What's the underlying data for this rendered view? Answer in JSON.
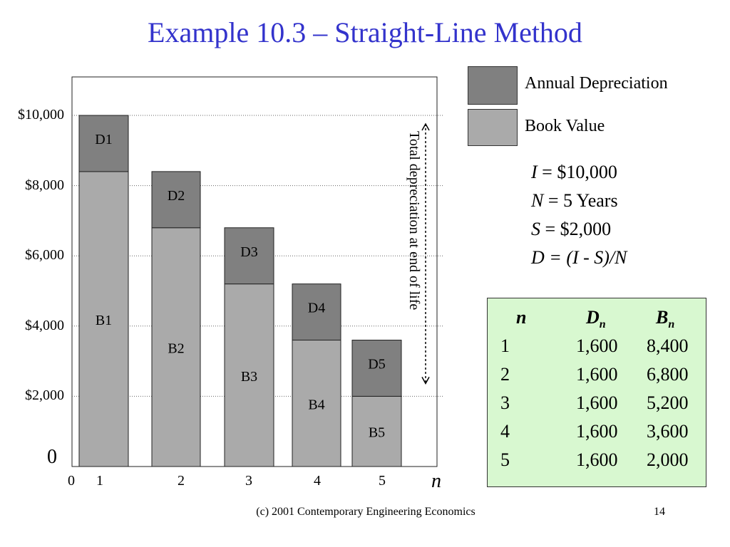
{
  "title": "Example 10.3 – Straight-Line Method",
  "chart_data": {
    "type": "bar",
    "stacked": true,
    "categories": [
      "1",
      "2",
      "3",
      "4",
      "5"
    ],
    "series": [
      {
        "name": "Book Value",
        "values": [
          8400,
          6800,
          5200,
          3600,
          2000
        ],
        "color": "#aaaaaa"
      },
      {
        "name": "Annual Depreciation",
        "values": [
          1600,
          1600,
          1600,
          1600,
          1600
        ],
        "color": "#808080"
      }
    ],
    "bar_labels": {
      "book": [
        "B1",
        "B2",
        "B3",
        "B4",
        "B5"
      ],
      "depreciation": [
        "D1",
        "D2",
        "D3",
        "D4",
        "D5"
      ]
    },
    "y_tick_labels": [
      "$2,000",
      "$4,000",
      "$6,000",
      "$8,000",
      "$10,000"
    ],
    "y_tick_values": [
      2000,
      4000,
      6000,
      8000,
      10000
    ],
    "x_tick_labels": [
      "0",
      "1",
      "2",
      "3",
      "4",
      "5"
    ],
    "zero_label": "0",
    "xlabel": "n",
    "ylim": [
      0,
      11000
    ],
    "grid": "dotted horizontal",
    "annotation": "Total depreciation at end of life",
    "legend": [
      {
        "label": "Annual Depreciation",
        "color": "#808080"
      },
      {
        "label": "Book Value",
        "color": "#aaaaaa"
      }
    ]
  },
  "given": {
    "i_var": "I",
    "i_val": " = $10,000",
    "n_var": "N",
    "n_val": " = 5 Years",
    "s_var": "S",
    "s_val": " = $2,000",
    "d_formula": "D = (I - S)/N"
  },
  "table": {
    "header_n": "n",
    "header_d": "D",
    "header_d_sub": "n",
    "header_b": "B",
    "header_b_sub": "n",
    "rows": [
      {
        "n": "1",
        "d": "1,600",
        "b": "8,400"
      },
      {
        "n": "2",
        "d": "1,600",
        "b": "6,800"
      },
      {
        "n": "3",
        "d": "1,600",
        "b": "5,200"
      },
      {
        "n": "4",
        "d": "1,600",
        "b": "3,600"
      },
      {
        "n": "5",
        "d": "1,600",
        "b": "2,000"
      }
    ]
  },
  "footer": {
    "left": "(c) 2001 Contemporary Engineering Economics",
    "page": "14"
  }
}
